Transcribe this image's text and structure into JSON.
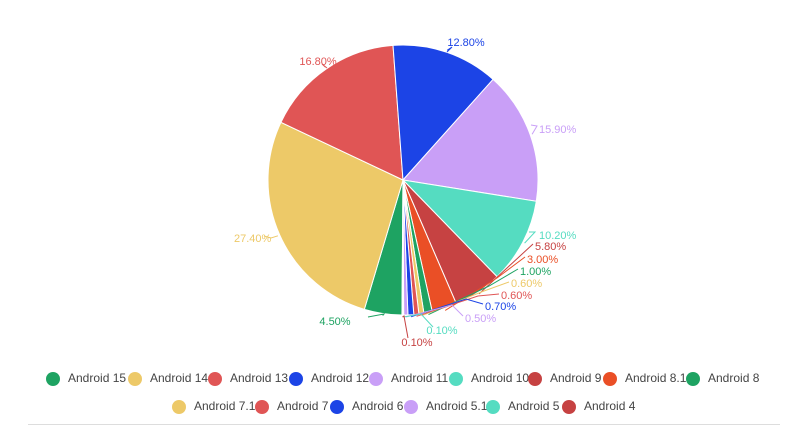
{
  "chart_data": {
    "type": "pie",
    "slices": [
      {
        "label": "Android 15",
        "value": 4.5,
        "color": "#1ea362"
      },
      {
        "label": "Android 14",
        "value": 27.4,
        "color": "#edc968"
      },
      {
        "label": "Android 13",
        "value": 16.8,
        "color": "#e05555"
      },
      {
        "label": "Android 12",
        "value": 12.8,
        "color": "#1c44e6"
      },
      {
        "label": "Android 11",
        "value": 15.9,
        "color": "#c99ff7"
      },
      {
        "label": "Android 10",
        "value": 10.2,
        "color": "#55dcc1"
      },
      {
        "label": "Android 9",
        "value": 5.8,
        "color": "#c64242"
      },
      {
        "label": "Android 8.1",
        "value": 3.0,
        "color": "#ea4f26"
      },
      {
        "label": "Android 8",
        "value": 1.0,
        "color": "#1ea362"
      },
      {
        "label": "Android 7.1",
        "value": 0.6,
        "color": "#edc968"
      },
      {
        "label": "Android 7",
        "value": 0.6,
        "color": "#e05555"
      },
      {
        "label": "Android 6",
        "value": 0.7,
        "color": "#1c44e6"
      },
      {
        "label": "Android 5.1",
        "value": 0.5,
        "color": "#c99ff7"
      },
      {
        "label": "Android 5",
        "value": 0.1,
        "color": "#55dcc1"
      },
      {
        "label": "Android 4",
        "value": 0.1,
        "color": "#c64242"
      }
    ],
    "data_labels": [
      "4.50%",
      "27.40%",
      "16.80%",
      "12.80%",
      "15.90%",
      "10.20%",
      "5.80%",
      "3.00%",
      "1.00%",
      "0.60%",
      "0.60%",
      "0.70%",
      "0.50%",
      "0.10%",
      "0.10%"
    ],
    "legend_position": "bottom"
  }
}
